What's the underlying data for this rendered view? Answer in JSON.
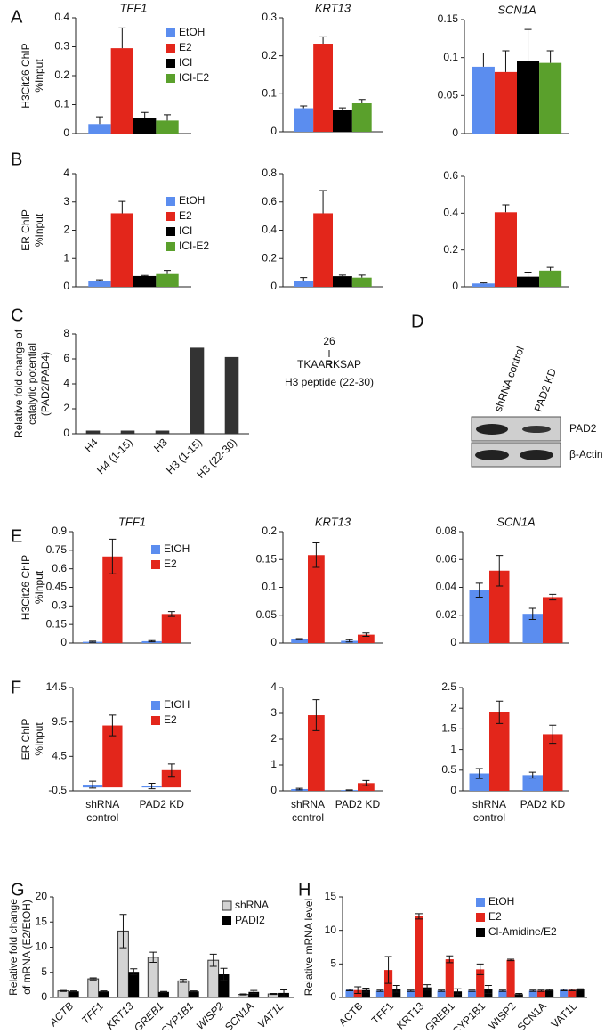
{
  "panel_letters": [
    "A",
    "B",
    "C",
    "D",
    "E",
    "F",
    "G",
    "H"
  ],
  "chart_data": [
    {
      "type": "bar",
      "title": "TFF1",
      "ylabel": [
        "H3Cit26 ChIP",
        "%Input"
      ],
      "ylim": [
        0,
        0.4
      ],
      "yticks": [
        0,
        0.1,
        0.2,
        0.3,
        0.4
      ],
      "legend": "upper right",
      "error_bars": "up",
      "series": [
        {
          "name": "EtOH",
          "color": "#5b8def",
          "values": [
            0.033
          ],
          "errors": [
            0.025
          ]
        },
        {
          "name": "E2",
          "color": "#e3261b",
          "values": [
            0.295
          ],
          "errors": [
            0.07
          ]
        },
        {
          "name": "ICI",
          "color": "#000000",
          "values": [
            0.055
          ],
          "errors": [
            0.018
          ]
        },
        {
          "name": "ICI-E2",
          "color": "#5aa02c",
          "values": [
            0.045
          ],
          "errors": [
            0.02
          ]
        }
      ]
    },
    {
      "type": "bar",
      "title": "KRT13",
      "ylim": [
        0,
        0.3
      ],
      "yticks": [
        0,
        0.1,
        0.2,
        0.3
      ],
      "error_bars": "up",
      "series": [
        {
          "color": "#5b8def",
          "values": [
            0.062
          ],
          "errors": [
            0.006
          ]
        },
        {
          "color": "#e3261b",
          "values": [
            0.232
          ],
          "errors": [
            0.018
          ]
        },
        {
          "color": "#000000",
          "values": [
            0.058
          ],
          "errors": [
            0.005
          ]
        },
        {
          "color": "#5aa02c",
          "values": [
            0.075
          ],
          "errors": [
            0.01
          ]
        }
      ]
    },
    {
      "type": "bar",
      "title": "SCN1A",
      "ylim": [
        0,
        0.15
      ],
      "yticks": [
        0,
        0.05,
        0.1,
        0.15
      ],
      "error_bars": "up",
      "series": [
        {
          "color": "#5b8def",
          "values": [
            0.088
          ],
          "errors": [
            0.018
          ]
        },
        {
          "color": "#e3261b",
          "values": [
            0.081
          ],
          "errors": [
            0.028
          ]
        },
        {
          "color": "#000000",
          "values": [
            0.095
          ],
          "errors": [
            0.042
          ]
        },
        {
          "color": "#5aa02c",
          "values": [
            0.093
          ],
          "errors": [
            0.016
          ]
        }
      ]
    },
    {
      "type": "bar",
      "ylabel": [
        "ER ChIP",
        "%Input"
      ],
      "ylim": [
        0,
        4
      ],
      "yticks": [
        0,
        1,
        2,
        3,
        4
      ],
      "legend": "upper right",
      "error_bars": "up",
      "series": [
        {
          "name": "EtOH",
          "color": "#5b8def",
          "values": [
            0.22
          ],
          "errors": [
            0.03
          ]
        },
        {
          "name": "E2",
          "color": "#e3261b",
          "values": [
            2.6
          ],
          "errors": [
            0.42
          ]
        },
        {
          "name": "ICI",
          "color": "#000000",
          "values": [
            0.38
          ],
          "errors": [
            0.02
          ]
        },
        {
          "name": "ICI-E2",
          "color": "#5aa02c",
          "values": [
            0.45
          ],
          "errors": [
            0.13
          ]
        }
      ]
    },
    {
      "type": "bar",
      "ylim": [
        0,
        0.8
      ],
      "yticks": [
        0,
        0.2,
        0.4,
        0.6,
        0.8
      ],
      "error_bars": "up",
      "series": [
        {
          "color": "#5b8def",
          "values": [
            0.04
          ],
          "errors": [
            0.025
          ]
        },
        {
          "color": "#e3261b",
          "values": [
            0.52
          ],
          "errors": [
            0.16
          ]
        },
        {
          "color": "#000000",
          "values": [
            0.075
          ],
          "errors": [
            0.008
          ]
        },
        {
          "color": "#5aa02c",
          "values": [
            0.065
          ],
          "errors": [
            0.018
          ]
        }
      ]
    },
    {
      "type": "bar",
      "ylim": [
        0,
        0.6
      ],
      "yticks": [
        0,
        0.2,
        0.4,
        0.6
      ],
      "error_bars": "up",
      "series": [
        {
          "color": "#5b8def",
          "values": [
            0.018
          ],
          "errors": [
            0.003
          ]
        },
        {
          "color": "#e3261b",
          "values": [
            0.405
          ],
          "errors": [
            0.04
          ]
        },
        {
          "color": "#000000",
          "values": [
            0.055
          ],
          "errors": [
            0.025
          ]
        },
        {
          "color": "#5aa02c",
          "values": [
            0.088
          ],
          "errors": [
            0.018
          ]
        }
      ]
    },
    {
      "type": "bar",
      "ylabel": [
        "Relative fold change of",
        "catalytic potential",
        "(PAD2/PAD4)"
      ],
      "ylim": [
        0,
        8
      ],
      "yticks": [
        0,
        2,
        4,
        6,
        8
      ],
      "rotated_categories": true,
      "categories": [
        "H4",
        "H4 (1-15)",
        "H3",
        "H3 (1-15)",
        "H3 (22-30)"
      ],
      "series": [
        {
          "color": "#333333",
          "values": [
            0.25,
            0.25,
            0.25,
            6.9,
            6.15
          ]
        }
      ]
    },
    {
      "type": "bar",
      "title": "TFF1",
      "ylabel": [
        "H3Cit26 ChIP",
        "%Input"
      ],
      "ylim": [
        0,
        0.9
      ],
      "yticks": [
        0,
        0.15,
        0.3,
        0.45,
        0.6,
        0.75,
        0.9
      ],
      "legend": "upper right",
      "error_bars": "both",
      "series": [
        {
          "name": "EtOH",
          "color": "#5b8def",
          "values": [
            0.01,
            0.015
          ],
          "errors": [
            0.005,
            0.005
          ]
        },
        {
          "name": "E2",
          "color": "#e3261b",
          "values": [
            0.7,
            0.235
          ],
          "errors": [
            0.14,
            0.02
          ]
        }
      ]
    },
    {
      "type": "bar",
      "title": "KRT13",
      "ylim": [
        0,
        0.2
      ],
      "yticks": [
        0,
        0.05,
        0.1,
        0.15,
        0.2
      ],
      "error_bars": "both",
      "series": [
        {
          "color": "#5b8def",
          "values": [
            0.007,
            0.004
          ],
          "errors": [
            0.001,
            0.002
          ]
        },
        {
          "color": "#e3261b",
          "values": [
            0.158,
            0.015
          ],
          "errors": [
            0.022,
            0.003
          ]
        }
      ]
    },
    {
      "type": "bar",
      "title": "SCN1A",
      "ylim": [
        0,
        0.08
      ],
      "yticks": [
        0,
        0.02,
        0.04,
        0.06,
        0.08
      ],
      "error_bars": "both",
      "series": [
        {
          "color": "#5b8def",
          "values": [
            0.038,
            0.021
          ],
          "errors": [
            0.005,
            0.004
          ]
        },
        {
          "color": "#e3261b",
          "values": [
            0.052,
            0.033
          ],
          "errors": [
            0.011,
            0.002
          ]
        }
      ]
    },
    {
      "type": "bar",
      "ylabel": [
        "ER ChIP",
        "%Input"
      ],
      "ylim": [
        -0.5,
        14.5
      ],
      "yticks": [
        -0.5,
        4.5,
        9.5,
        14.5
      ],
      "legend": "upper right",
      "error_bars": "both",
      "categories": [
        [
          "shRNA",
          "control"
        ],
        [
          "PAD2 KD"
        ]
      ],
      "series": [
        {
          "name": "EtOH",
          "color": "#5b8def",
          "values": [
            0.4,
            0.2
          ],
          "errors": [
            0.5,
            0.4
          ]
        },
        {
          "name": "E2",
          "color": "#e3261b",
          "values": [
            9.0,
            2.5
          ],
          "errors": [
            1.5,
            0.9
          ]
        }
      ]
    },
    {
      "type": "bar",
      "ylim": [
        0,
        4
      ],
      "yticks": [
        0,
        1,
        2,
        3,
        4
      ],
      "error_bars": "both",
      "categories": [
        [
          "shRNA",
          "control"
        ],
        [
          "PAD2 KD"
        ]
      ],
      "series": [
        {
          "color": "#5b8def",
          "values": [
            0.07,
            0.03
          ],
          "errors": [
            0.03,
            0.01
          ]
        },
        {
          "color": "#e3261b",
          "values": [
            2.93,
            0.3
          ],
          "errors": [
            0.6,
            0.1
          ]
        }
      ]
    },
    {
      "type": "bar",
      "ylim": [
        0,
        2.5
      ],
      "yticks": [
        0,
        0.5,
        1,
        1.5,
        2,
        2.5
      ],
      "error_bars": "both",
      "categories": [
        [
          "shRNA",
          "control"
        ],
        [
          "PAD2 KD"
        ]
      ],
      "series": [
        {
          "color": "#5b8def",
          "values": [
            0.42,
            0.38
          ],
          "errors": [
            0.12,
            0.07
          ]
        },
        {
          "color": "#e3261b",
          "values": [
            1.9,
            1.37
          ],
          "errors": [
            0.27,
            0.22
          ]
        }
      ]
    },
    {
      "type": "bar",
      "ylabel": [
        "Relative fold change",
        "of mRNA (E2/EtOH)"
      ],
      "ylim": [
        0,
        20
      ],
      "yticks": [
        0,
        5,
        10,
        15,
        20
      ],
      "legend": "upper right",
      "error_bars": "both",
      "rotated_categories": true,
      "italic_categories": true,
      "categories": [
        "ACTB",
        "TFF1",
        "KRT13",
        "GREB1",
        "CYP1B1",
        "WISP2",
        "SCN1A",
        "VAT1L"
      ],
      "series": [
        {
          "name": "shRNA",
          "color": "#d3d3d3",
          "values": [
            1.3,
            3.7,
            13.2,
            8.0,
            3.3,
            7.4,
            0.6,
            0.7
          ],
          "errors": [
            0.1,
            0.2,
            3.3,
            1.0,
            0.3,
            1.2,
            0.1,
            0.1
          ]
        },
        {
          "name": "PADI2",
          "color": "#000000",
          "values": [
            1.2,
            1.2,
            5.1,
            1.1,
            1.2,
            4.6,
            1.1,
            0.9
          ],
          "errors": [
            0.1,
            0.1,
            0.6,
            0.1,
            0.1,
            1.2,
            0.3,
            0.6
          ]
        }
      ]
    },
    {
      "type": "bar",
      "ylabel": [
        "Relative mRNA level"
      ],
      "ylim": [
        0,
        15
      ],
      "yticks": [
        0,
        5,
        10,
        15
      ],
      "legend": "upper right",
      "error_bars": "both",
      "rotated_categories": true,
      "categories": [
        "ACTB",
        "TFF1",
        "KRT13",
        "GREB1",
        "CYP1B1",
        "WISP2",
        "SCN1A",
        "VAT1L"
      ],
      "series": [
        {
          "name": "EtOH",
          "color": "#5b8def",
          "values": [
            1.1,
            1.0,
            1.0,
            1.0,
            1.0,
            1.0,
            1.0,
            1.1
          ],
          "errors": [
            0.1,
            0.1,
            0.1,
            0.1,
            0.1,
            0.1,
            0.1,
            0.1
          ]
        },
        {
          "name": "E2",
          "color": "#e3261b",
          "values": [
            1.1,
            4.1,
            12.1,
            5.7,
            4.2,
            5.6,
            1.0,
            1.1
          ],
          "errors": [
            0.5,
            2.0,
            0.4,
            0.5,
            0.8,
            0.1,
            0.1,
            0.1
          ]
        },
        {
          "name": "Cl-Amidine/E2",
          "color": "#000000",
          "values": [
            1.1,
            1.3,
            1.5,
            0.9,
            1.2,
            0.5,
            1.1,
            1.2
          ],
          "errors": [
            0.3,
            0.5,
            0.4,
            0.4,
            0.6,
            0.1,
            0.1,
            0.1
          ]
        }
      ]
    }
  ],
  "peptide": {
    "position": "26",
    "sequence": [
      "TKAA",
      "R",
      "KSAP"
    ],
    "label": "H3 peptide (22-30)"
  },
  "blot": {
    "lanes": [
      "shRNA control",
      "PAD2 KD"
    ],
    "bands": [
      "PAD2",
      "β-Actin"
    ]
  }
}
